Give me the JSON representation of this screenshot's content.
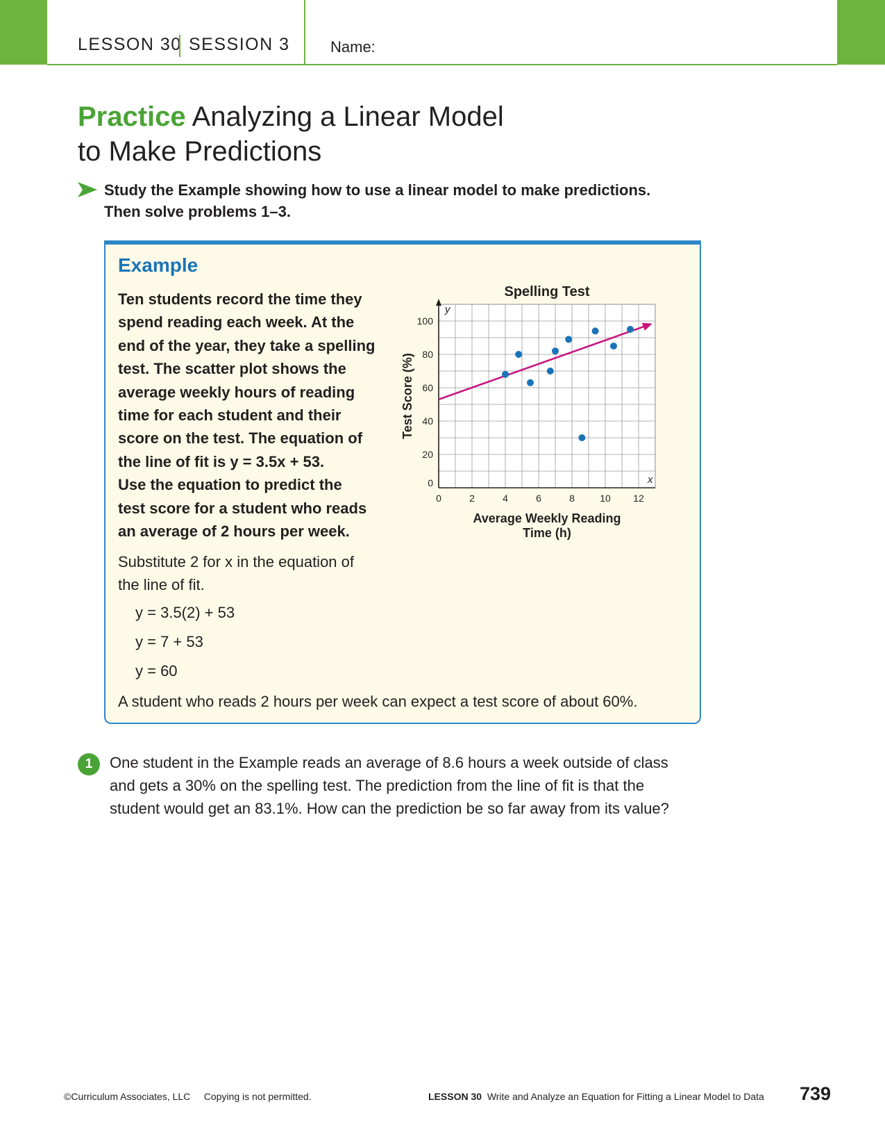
{
  "header": {
    "lesson": "LESSON 30",
    "session": "SESSION 3",
    "name_label": "Name:"
  },
  "title": {
    "practice": "Practice",
    "line1": "Analyzing a Linear Model",
    "line2": "to Make Predictions"
  },
  "instructions": {
    "line1": "Study the Example showing how to use a linear model to make predictions.",
    "line2": "Then solve problems 1–3."
  },
  "example": {
    "heading": "Example",
    "problem_lines": [
      "Ten students record the time they",
      "spend reading each week. At the",
      "end of the year, they take a spelling",
      "test. The scatter plot shows the",
      "average weekly hours of reading",
      "time for each student and their",
      "score on the test. The equation of",
      "the line of fit is y = 3.5x + 53.",
      "Use the equation to predict the",
      "test score for a student who reads",
      "an average of 2 hours per week."
    ],
    "substitute_lines": [
      "Substitute 2 for x in the equation of",
      "the line of fit."
    ],
    "equations": [
      "y = 3.5(2) + 53",
      "y = 7 + 53",
      "y = 60"
    ],
    "conclusion": "A student who reads 2 hours per week can expect a test score of about 60%."
  },
  "chart_data": {
    "type": "scatter",
    "title": "Spelling Test",
    "xlabel": "Average Weekly Reading Time (h)",
    "ylabel": "Test Score (%)",
    "x_axis_letter": "x",
    "y_axis_letter": "y",
    "xlim": [
      0,
      13
    ],
    "ylim": [
      0,
      110
    ],
    "x_ticks": [
      0,
      2,
      4,
      6,
      8,
      10,
      12
    ],
    "y_ticks": [
      0,
      20,
      40,
      60,
      80,
      100
    ],
    "grid": true,
    "points": [
      {
        "x": 4,
        "y": 68
      },
      {
        "x": 4.8,
        "y": 80
      },
      {
        "x": 5.5,
        "y": 63
      },
      {
        "x": 6.7,
        "y": 70
      },
      {
        "x": 7,
        "y": 82
      },
      {
        "x": 7.8,
        "y": 89
      },
      {
        "x": 8.6,
        "y": 30
      },
      {
        "x": 9.4,
        "y": 94
      },
      {
        "x": 10.5,
        "y": 85
      },
      {
        "x": 11.5,
        "y": 95
      }
    ],
    "line_of_fit": {
      "slope": 3.5,
      "intercept": 53,
      "x_end": 13
    },
    "point_color": "#1a73b8",
    "line_color": "#c8157f"
  },
  "question": {
    "number": "1",
    "lines": [
      "One student in the Example reads an average of 8.6 hours a week outside of class",
      "and gets a 30% on the spelling test. The prediction from the line of fit is that the",
      "student would get an 83.1%. How can the prediction be so far away from its value?"
    ]
  },
  "footer": {
    "copyright": "©Curriculum Associates, LLC",
    "copying": "Copying is not permitted.",
    "lesson": "LESSON 30",
    "lesson_title": "Write and Analyze an Equation for Fitting a Linear Model to Data",
    "page_number": "739"
  },
  "colors": {
    "green": "#6db33f",
    "blue": "#1a73b8",
    "magenta": "#c8157f"
  }
}
